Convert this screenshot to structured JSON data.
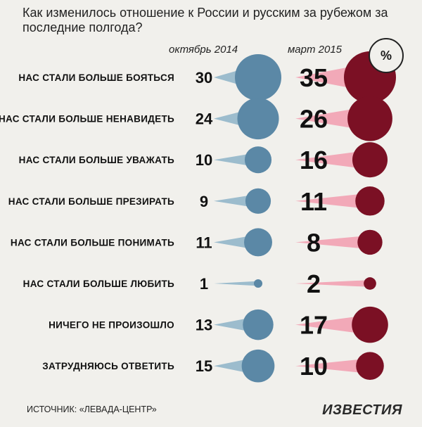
{
  "chart_data": {
    "type": "bubble",
    "title": "Как изменилось отношение к России и русским за рубежом за последние полгода?",
    "unit": "%",
    "series": [
      {
        "name": "октябрь 2014",
        "color": "#5b88a6",
        "tail_color": "#9cbccd"
      },
      {
        "name": "март 2015",
        "color": "#7b1024",
        "tail_color": "#f2a9b8"
      }
    ],
    "categories": [
      "НАС СТАЛИ БОЛЬШЕ БОЯТЬСЯ",
      "НАС СТАЛИ БОЛЬШЕ НЕНАВИДЕТЬ",
      "НАС СТАЛИ БОЛЬШЕ УВАЖАТЬ",
      "НАС СТАЛИ БОЛЬШЕ ПРЕЗИРАТЬ",
      "НАС СТАЛИ БОЛЬШЕ ПОНИМАТЬ",
      "НАС СТАЛИ БОЛЬШЕ ЛЮБИТЬ",
      "НИЧЕГО НЕ ПРОИЗОШЛО",
      "ЗАТРУДНЯЮСЬ ОТВЕТИТЬ"
    ],
    "values": {
      "october_2014": [
        30,
        24,
        10,
        9,
        11,
        1,
        13,
        15
      ],
      "march_2015": [
        35,
        26,
        16,
        11,
        8,
        2,
        17,
        10
      ]
    }
  },
  "source": "ИСТОЧНИК: «ЛЕВАДА-ЦЕНТР»",
  "logo": "ИЗВЕСТИЯ"
}
